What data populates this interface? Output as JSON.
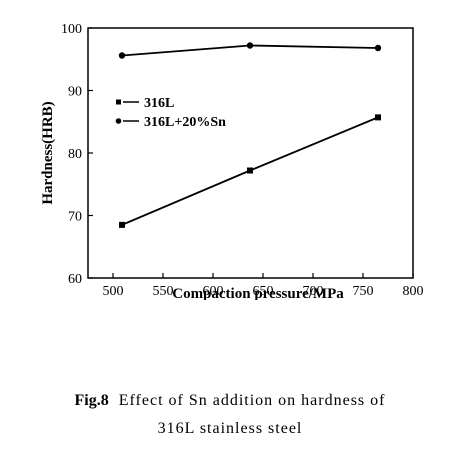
{
  "chart_data": {
    "type": "line",
    "xlabel": "Compaction pressure/MPa",
    "ylabel": "Hardness(HRB)",
    "xlim": [
      475,
      800
    ],
    "ylim": [
      60,
      100
    ],
    "xticks": [
      500,
      550,
      600,
      650,
      700,
      750,
      800
    ],
    "yticks": [
      60,
      70,
      80,
      90,
      100
    ],
    "grid": false,
    "legend_placement": "upper-left",
    "series": [
      {
        "name": "316L",
        "marker": "square",
        "x": [
          509,
          637,
          765
        ],
        "y": [
          68.5,
          77.2,
          85.7
        ]
      },
      {
        "name": "316L+20%Sn",
        "marker": "circle",
        "x": [
          509,
          637,
          765
        ],
        "y": [
          95.6,
          97.2,
          96.8
        ]
      }
    ]
  },
  "caption": {
    "label": "Fig.8",
    "line1": "Effect of Sn addition on hardness of",
    "line2": "316L stainless steel"
  }
}
